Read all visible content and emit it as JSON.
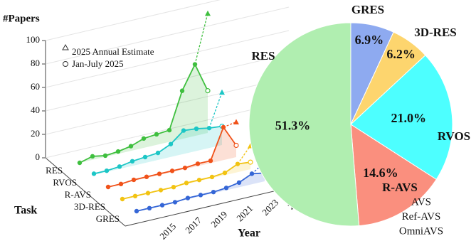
{
  "chart_data": [
    {
      "type": "line3d",
      "y_label": "#Papers",
      "task_label": "Task",
      "x_label": "Year",
      "estimate_label": "2025 Annual Estimate",
      "partial_label": "Jan-July 2025",
      "x": [
        2015,
        2016,
        2017,
        2018,
        2019,
        2020,
        2021,
        2022,
        2023,
        2024,
        2025
      ],
      "xlim": [
        2015,
        2025
      ],
      "xticks": [
        2015,
        2017,
        2019,
        2021,
        2023,
        2025
      ],
      "ylim": [
        0,
        100
      ],
      "yticks": [
        0,
        20,
        40,
        60,
        80,
        100
      ],
      "grid": true,
      "series": [
        {
          "name": "RES",
          "color": "#3fbf3f",
          "values": [
            0,
            3,
            1,
            2,
            4,
            8,
            9,
            10,
            41,
            61,
            36
          ],
          "estimate": 102
        },
        {
          "name": "RVOS",
          "color": "#1cc6c6",
          "values": [
            1,
            1,
            2,
            4,
            5,
            6,
            11,
            20,
            19,
            17,
            16
          ],
          "estimate": 45
        },
        {
          "name": "R-AVS",
          "color": "#f0521a",
          "values": [
            0,
            0,
            1,
            1,
            1,
            1,
            1,
            2,
            2,
            28,
            10
          ],
          "estimate": 30
        },
        {
          "name": "3D-RES",
          "color": "#f2c312",
          "values": [
            0,
            0,
            0,
            0,
            0,
            1,
            1,
            1,
            2,
            7,
            6
          ],
          "estimate": 20
        },
        {
          "name": "GRES",
          "color": "#3566d6",
          "values": [
            0,
            0,
            0,
            0,
            1,
            1,
            1,
            2,
            4,
            9,
            7
          ],
          "estimate": 16
        }
      ]
    },
    {
      "type": "pie",
      "categories": [
        "GRES",
        "3D-RES",
        "RVOS",
        "R-AVS",
        "RES"
      ],
      "values": [
        6.9,
        6.2,
        21.0,
        14.6,
        51.3
      ],
      "value_labels": [
        "6.9%",
        "6.2%",
        "21.0%",
        "14.6%",
        "51.3%"
      ],
      "colors": [
        "#8eaaf0",
        "#fdd56e",
        "#4dffff",
        "#fa8f7e",
        "#b0eeb0"
      ],
      "annotations": [
        "AVS",
        "Ref-AVS",
        "OmniAVS"
      ]
    }
  ]
}
